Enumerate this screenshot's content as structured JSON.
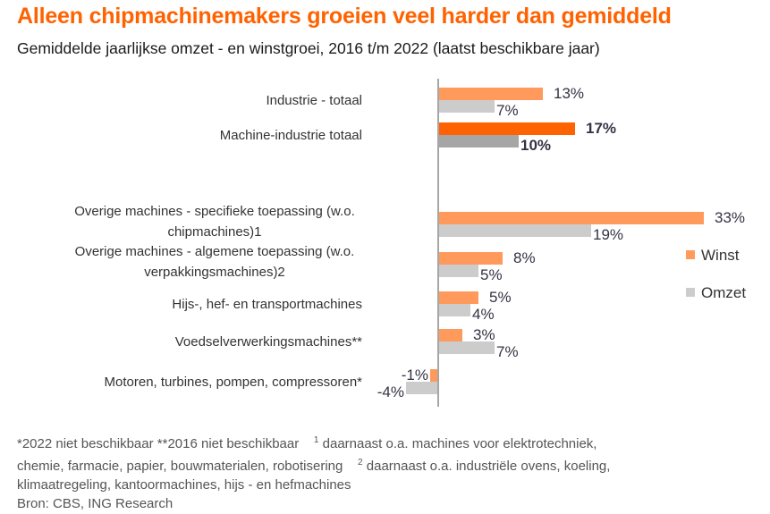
{
  "chart_data": {
    "type": "bar",
    "orientation": "horizontal",
    "title": "Alleen chipmachinemakers groeien veel harder dan gemiddeld",
    "subtitle": "Gemiddelde jaarlijkse omzet - en winstgroei, 2016 t/m 2022 (laatst beschikbare jaar)",
    "xlabel": "",
    "ylabel": "",
    "unit": "%",
    "xlim": [
      -5,
      35
    ],
    "grid": false,
    "legend_position": "right",
    "categories": [
      [
        "Industrie - totaal"
      ],
      [
        "Machine-industrie totaal"
      ],
      [
        "Overige machines - specifieke toepassing (w.o.",
        "chipmachines)1"
      ],
      [
        "Overige machines - algemene toepassing (w.o.",
        "verpakkingsmachines)2"
      ],
      [
        "Hijs-, hef- en transportmachines"
      ],
      [
        "Voedselverwerkingsmachines**"
      ],
      [
        "Motoren, turbines, pompen, compressoren*"
      ]
    ],
    "highlight_index": 1,
    "series": [
      {
        "name": "Winst",
        "color": "#ff9a5c",
        "highlight_color": "#ff6200",
        "values": [
          13,
          17,
          33,
          8,
          5,
          3,
          -1
        ],
        "labels": [
          "13%",
          "17%",
          "33%",
          "8%",
          "5%",
          "3%",
          "-1%"
        ]
      },
      {
        "name": "Omzet",
        "color": "#cccccc",
        "highlight_color": "#a6a6a6",
        "values": [
          7,
          10,
          19,
          5,
          4,
          7,
          -4
        ],
        "labels": [
          "7%",
          "10%",
          "19%",
          "5%",
          "4%",
          "7%",
          "-4%"
        ]
      }
    ]
  },
  "footnotes": {
    "line1a": "*2022 niet beschikbaar **2016 niet beschikbaar",
    "sup1": "1",
    "line1b": " daarnaast o.a. machines voor elektrotechniek,",
    "line2a": "chemie, farmacie, papier, bouwmaterialen, robotisering",
    "sup2": "2",
    "line2b": " daarnaast o.a. industriële ovens, koeling,",
    "line3": "klimaatregeling, kantoormachines, hijs  - en hefmachines",
    "source": "Bron: CBS, ING Research"
  }
}
